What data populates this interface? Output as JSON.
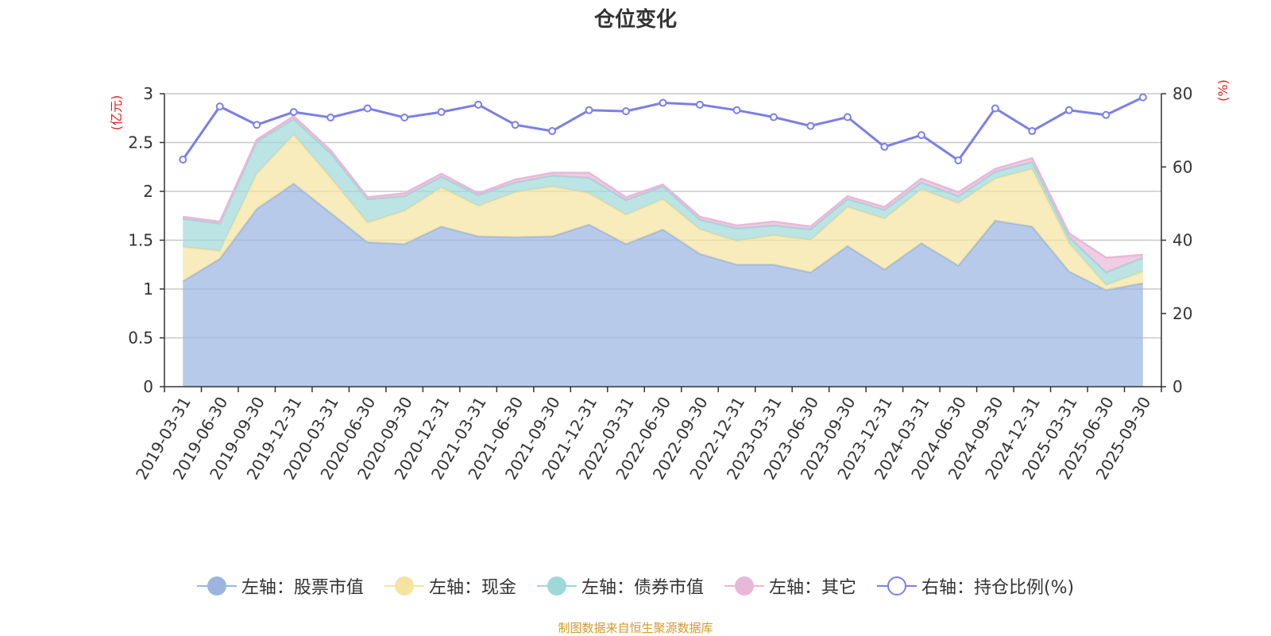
{
  "title": "仓位变化",
  "source_note": "制图数据来自恒生聚源数据库",
  "chart_data": {
    "type": "area",
    "title": "仓位变化",
    "categories": [
      "2019-03-31",
      "2019-06-30",
      "2019-09-30",
      "2019-12-31",
      "2020-03-31",
      "2020-06-30",
      "2020-09-30",
      "2020-12-31",
      "2021-03-31",
      "2021-06-30",
      "2021-09-30",
      "2021-12-31",
      "2022-03-31",
      "2022-06-30",
      "2022-09-30",
      "2022-12-31",
      "2023-03-31",
      "2023-06-30",
      "2023-09-30",
      "2023-12-31",
      "2024-03-31",
      "2024-06-30",
      "2024-09-30",
      "2024-12-31",
      "2025-03-31",
      "2025-06-30",
      "2025-09-30"
    ],
    "left_axis": {
      "unit": "(亿元)",
      "ylim": [
        0,
        3
      ],
      "ticks": [
        "0",
        "0.5",
        "1",
        "1.5",
        "2",
        "2.5",
        "3"
      ],
      "tick_values": [
        0,
        0.5,
        1,
        1.5,
        2,
        2.5,
        3
      ]
    },
    "right_axis": {
      "unit": "(%)",
      "ylim": [
        0,
        80
      ],
      "ticks": [
        "0",
        "20",
        "40",
        "60",
        "80"
      ],
      "tick_values": [
        0,
        20,
        40,
        60,
        80
      ]
    },
    "series": [
      {
        "name": "左轴：股票市值",
        "axis": "left",
        "stack": true,
        "color": "#9bb5e0",
        "values": [
          1.08,
          1.31,
          1.82,
          2.08,
          1.78,
          1.48,
          1.46,
          1.64,
          1.54,
          1.53,
          1.54,
          1.66,
          1.46,
          1.61,
          1.36,
          1.25,
          1.25,
          1.17,
          1.44,
          1.2,
          1.47,
          1.24,
          1.7,
          1.64,
          1.18,
          0.99,
          1.06
        ]
      },
      {
        "name": "左轴：现金",
        "axis": "left",
        "stack": true,
        "color": "#f5e4a0",
        "values": [
          0.35,
          0.08,
          0.36,
          0.5,
          0.36,
          0.2,
          0.34,
          0.4,
          0.31,
          0.46,
          0.51,
          0.32,
          0.3,
          0.31,
          0.25,
          0.24,
          0.3,
          0.33,
          0.4,
          0.52,
          0.55,
          0.64,
          0.43,
          0.59,
          0.29,
          0.05,
          0.12
        ]
      },
      {
        "name": "左轴：债券市值",
        "axis": "left",
        "stack": true,
        "color": "#9fd8d8",
        "values": [
          0.29,
          0.28,
          0.33,
          0.16,
          0.25,
          0.24,
          0.15,
          0.11,
          0.11,
          0.1,
          0.11,
          0.16,
          0.15,
          0.13,
          0.1,
          0.13,
          0.1,
          0.11,
          0.08,
          0.09,
          0.07,
          0.07,
          0.07,
          0.07,
          0.06,
          0.13,
          0.14
        ]
      },
      {
        "name": "左轴：其它",
        "axis": "left",
        "stack": true,
        "color": "#e8b8d8",
        "values": [
          0.02,
          0.02,
          0.02,
          0.03,
          0.03,
          0.02,
          0.03,
          0.03,
          0.02,
          0.03,
          0.03,
          0.05,
          0.03,
          0.02,
          0.03,
          0.03,
          0.04,
          0.03,
          0.03,
          0.03,
          0.04,
          0.04,
          0.03,
          0.04,
          0.04,
          0.15,
          0.03
        ]
      },
      {
        "name": "右轴：持仓比例(%)",
        "axis": "right",
        "stack": false,
        "color": "#7b7fe8",
        "values": [
          62,
          76.5,
          71.5,
          75,
          73.5,
          76,
          73.5,
          75,
          77,
          71.5,
          69.8,
          75.5,
          75.2,
          77.5,
          77,
          75.5,
          73.6,
          71.2,
          73.6,
          65.5,
          68.7,
          61.8,
          76,
          69.8,
          75.5,
          74.2,
          79
        ]
      }
    ],
    "legend_position": "bottom-center",
    "grid": true
  }
}
